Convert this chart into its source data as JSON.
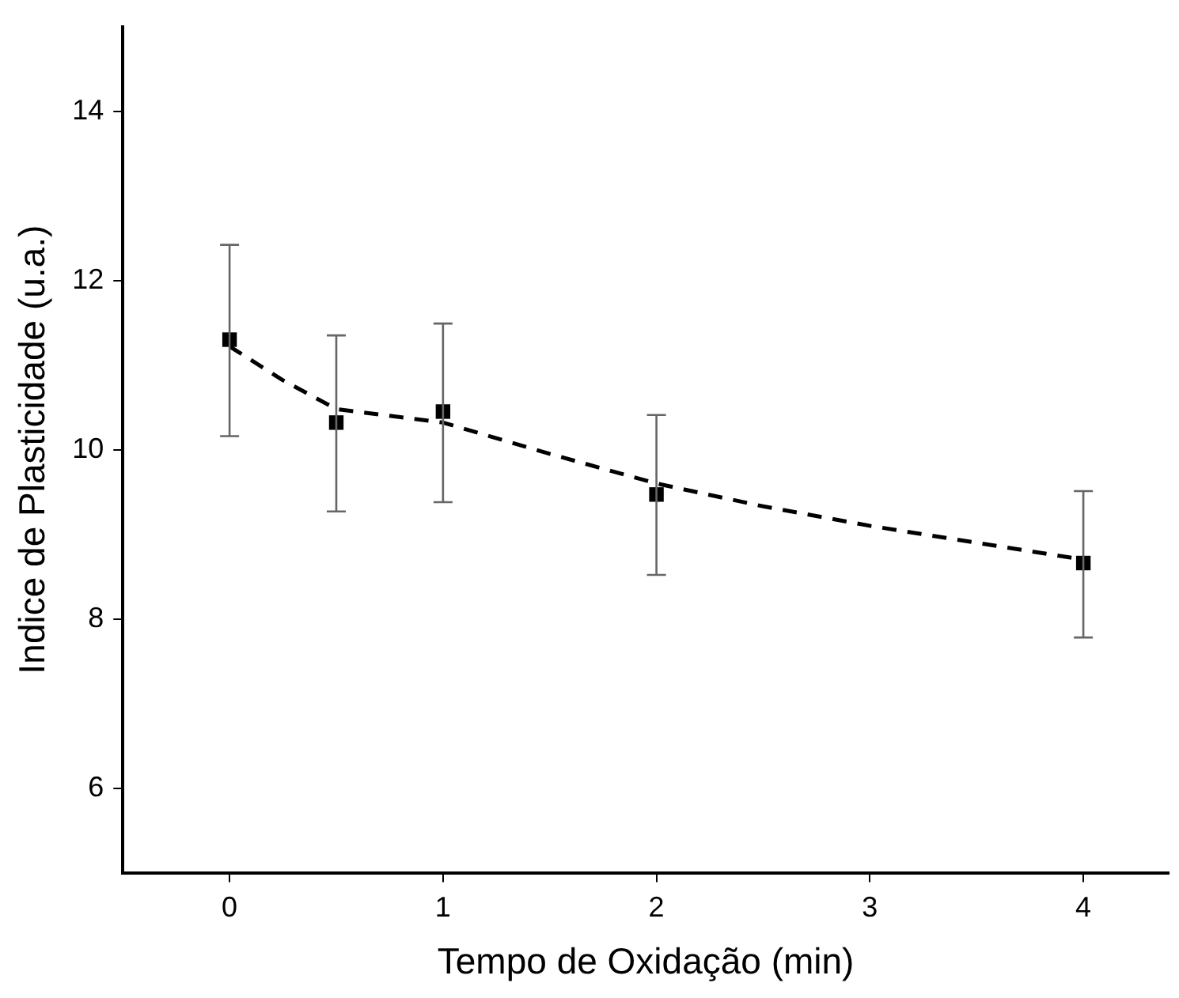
{
  "chart_data": {
    "type": "scatter",
    "xlabel": "Tempo de Oxidação (min)",
    "ylabel": "Indice de Plasticidade (u.a.)",
    "xlim": [
      -0.5,
      4.4
    ],
    "xticks": [
      0,
      1,
      2,
      3,
      4
    ],
    "ylim": [
      5,
      15
    ],
    "yticks": [
      6,
      8,
      10,
      12,
      14
    ],
    "grid": false,
    "legend": false,
    "series": [
      {
        "type": "scatter",
        "color": "#000000",
        "marker": "square",
        "x": [
          0,
          0.5,
          1,
          2,
          4
        ],
        "values": [
          11.3,
          10.32,
          10.45,
          9.47,
          8.66
        ],
        "errors": [
          [
            10.16,
            12.42
          ],
          [
            9.27,
            11.35
          ],
          [
            9.38,
            11.49
          ],
          [
            8.52,
            10.41
          ],
          [
            7.78,
            9.51
          ]
        ]
      },
      {
        "type": "line",
        "color": "#000000",
        "marker": "none",
        "line_style": "dashed",
        "x": [
          0,
          0.25,
          0.5,
          0.75,
          1,
          1.5,
          2,
          2.5,
          3,
          3.5,
          4
        ],
        "values": [
          11.22,
          10.82,
          10.48,
          10.4,
          10.32,
          9.95,
          9.6,
          9.33,
          9.1,
          8.9,
          8.7
        ]
      }
    ]
  }
}
